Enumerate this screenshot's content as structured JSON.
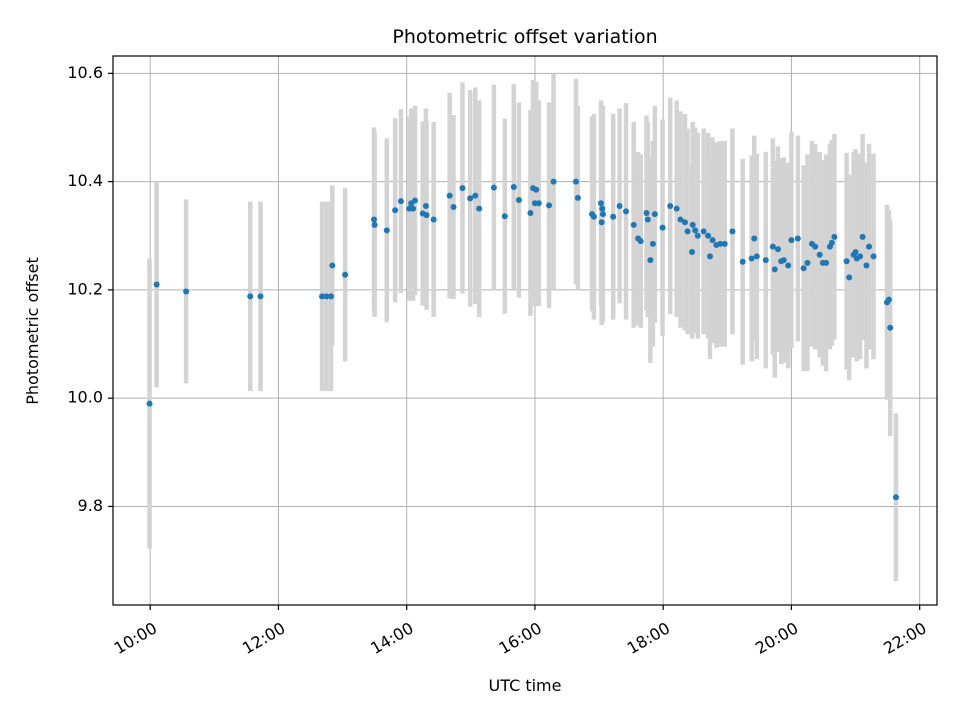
{
  "chart_data": {
    "type": "scatter",
    "title": "Photometric offset variation",
    "xlabel": "UTC time",
    "ylabel": "Photometric offset",
    "x_unit": "hours",
    "xlim": [
      9.42,
      22.27
    ],
    "ylim": [
      9.618,
      10.632
    ],
    "x_ticks": [
      10,
      12,
      14,
      16,
      18,
      20,
      22
    ],
    "x_tick_labels": [
      "10:00",
      "12:00",
      "14:00",
      "16:00",
      "18:00",
      "20:00",
      "22:00"
    ],
    "y_ticks": [
      9.8,
      10.0,
      10.2,
      10.4,
      10.6
    ],
    "y_tick_labels": [
      "9.8",
      "10.0",
      "10.2",
      "10.4",
      "10.6"
    ],
    "grid": true,
    "colors": {
      "point": "#1f77b4",
      "errorbar": "#d3d3d3",
      "grid": "#b0b0b0"
    },
    "series": [
      {
        "x": [
          9.99,
          10.1,
          10.56,
          11.56,
          11.72,
          12.68,
          12.75,
          12.82,
          12.84,
          13.04,
          13.49,
          13.5,
          13.69,
          13.82,
          13.91,
          14.04,
          14.07,
          14.1,
          14.13,
          14.25,
          14.3,
          14.31,
          14.42,
          14.67,
          14.73,
          14.87,
          14.99,
          15.07,
          15.13,
          15.36,
          15.53,
          15.67,
          15.75,
          15.93,
          15.97,
          16.0,
          16.02,
          16.06,
          16.22,
          16.29,
          16.64,
          16.67,
          16.89,
          16.92,
          17.03,
          17.04,
          17.05,
          17.06,
          17.22,
          17.32,
          17.42,
          17.54,
          17.61,
          17.65,
          17.74,
          17.76,
          17.8,
          17.84,
          17.87,
          17.99,
          18.11,
          18.21,
          18.27,
          18.34,
          18.38,
          18.45,
          18.46,
          18.5,
          18.54,
          18.63,
          18.7,
          18.73,
          18.77,
          18.83,
          18.89,
          18.96,
          19.08,
          19.24,
          19.38,
          19.42,
          19.46,
          19.6,
          19.71,
          19.74,
          19.79,
          19.84,
          19.88,
          19.95,
          20.0,
          20.1,
          20.19,
          20.25,
          20.32,
          20.37,
          20.44,
          20.49,
          20.54,
          20.6,
          20.63,
          20.67,
          20.86,
          20.9,
          20.97,
          21.0,
          21.02,
          21.07,
          21.11,
          21.17,
          21.21,
          21.28,
          21.49,
          21.52,
          21.54,
          21.63
        ],
        "y": [
          9.99,
          10.21,
          10.197,
          10.188,
          10.188,
          10.188,
          10.188,
          10.188,
          10.245,
          10.228,
          10.33,
          10.32,
          10.31,
          10.347,
          10.364,
          10.35,
          10.36,
          10.35,
          10.365,
          10.341,
          10.355,
          10.338,
          10.33,
          10.374,
          10.353,
          10.388,
          10.369,
          10.374,
          10.35,
          10.389,
          10.336,
          10.39,
          10.366,
          10.342,
          10.388,
          10.36,
          10.385,
          10.36,
          10.356,
          10.4,
          10.4,
          10.37,
          10.34,
          10.335,
          10.36,
          10.325,
          10.35,
          10.34,
          10.335,
          10.355,
          10.345,
          10.32,
          10.295,
          10.29,
          10.342,
          10.33,
          10.255,
          10.285,
          10.34,
          10.315,
          10.355,
          10.35,
          10.33,
          10.325,
          10.308,
          10.27,
          10.32,
          10.31,
          10.3,
          10.308,
          10.3,
          10.262,
          10.292,
          10.283,
          10.285,
          10.285,
          10.308,
          10.252,
          10.258,
          10.295,
          10.262,
          10.255,
          10.28,
          10.238,
          10.275,
          10.253,
          10.255,
          10.245,
          10.292,
          10.295,
          10.24,
          10.25,
          10.285,
          10.28,
          10.265,
          10.25,
          10.25,
          10.28,
          10.287,
          10.298,
          10.253,
          10.223,
          10.265,
          10.27,
          10.258,
          10.262,
          10.298,
          10.245,
          10.28,
          10.262,
          10.177,
          10.182,
          10.13,
          9.817
        ],
        "err": [
          0.268,
          0.19,
          0.17,
          0.175,
          0.175,
          0.175,
          0.175,
          0.175,
          0.148,
          0.16,
          0.17,
          0.17,
          0.17,
          0.17,
          0.17,
          0.17,
          0.175,
          0.17,
          0.175,
          0.17,
          0.18,
          0.175,
          0.18,
          0.19,
          0.17,
          0.195,
          0.2,
          0.2,
          0.2,
          0.19,
          0.18,
          0.19,
          0.18,
          0.19,
          0.2,
          0.19,
          0.2,
          0.19,
          0.19,
          0.2,
          0.19,
          0.17,
          0.18,
          0.19,
          0.19,
          0.19,
          0.19,
          0.2,
          0.19,
          0.18,
          0.2,
          0.19,
          0.16,
          0.16,
          0.18,
          0.18,
          0.19,
          0.19,
          0.2,
          0.2,
          0.2,
          0.2,
          0.2,
          0.2,
          0.19,
          0.16,
          0.19,
          0.19,
          0.19,
          0.19,
          0.19,
          0.19,
          0.19,
          0.19,
          0.19,
          0.19,
          0.19,
          0.19,
          0.19,
          0.19,
          0.19,
          0.2,
          0.2,
          0.2,
          0.19,
          0.19,
          0.19,
          0.19,
          0.2,
          0.19,
          0.19,
          0.2,
          0.19,
          0.19,
          0.19,
          0.19,
          0.2,
          0.19,
          0.19,
          0.19,
          0.2,
          0.19,
          0.19,
          0.19,
          0.19,
          0.19,
          0.19,
          0.19,
          0.19,
          0.19,
          0.18,
          0.165,
          0.2,
          0.155
        ]
      }
    ]
  }
}
